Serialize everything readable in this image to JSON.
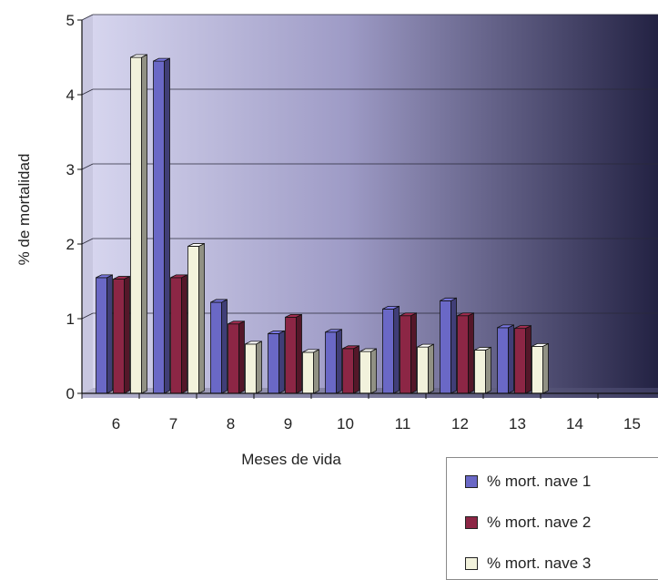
{
  "chart_data": {
    "type": "bar",
    "title": "",
    "xlabel": "Meses de vida",
    "ylabel": "% de mortalidad",
    "categories": [
      "6",
      "7",
      "8",
      "9",
      "10",
      "11",
      "12",
      "13",
      "14",
      "15"
    ],
    "yticks": [
      "0",
      "1",
      "2",
      "3",
      "4",
      "5"
    ],
    "ylim": [
      0,
      5
    ],
    "grid": true,
    "legend_position": "bottom-right",
    "series": [
      {
        "name": "% mort. nave 1",
        "color": "#6a68c6",
        "values": [
          1.55,
          4.45,
          1.22,
          0.8,
          0.82,
          1.13,
          1.24,
          0.88,
          null,
          null
        ]
      },
      {
        "name": "% mort. nave 2",
        "color": "#8c2645",
        "values": [
          1.53,
          1.55,
          0.93,
          1.02,
          0.6,
          1.04,
          1.04,
          0.87,
          null,
          null
        ]
      },
      {
        "name": "% mort. nave 3",
        "color": "#f2f2dc",
        "values": [
          4.5,
          1.97,
          0.66,
          0.55,
          0.56,
          0.62,
          0.58,
          0.63,
          null,
          null
        ]
      }
    ]
  },
  "legend": {
    "items": [
      {
        "label": "% mort. nave 1",
        "color": "#6a68c6"
      },
      {
        "label": "% mort. nave 2",
        "color": "#8c2645"
      },
      {
        "label": "% mort. nave 3",
        "color": "#f2f2dc"
      }
    ]
  }
}
